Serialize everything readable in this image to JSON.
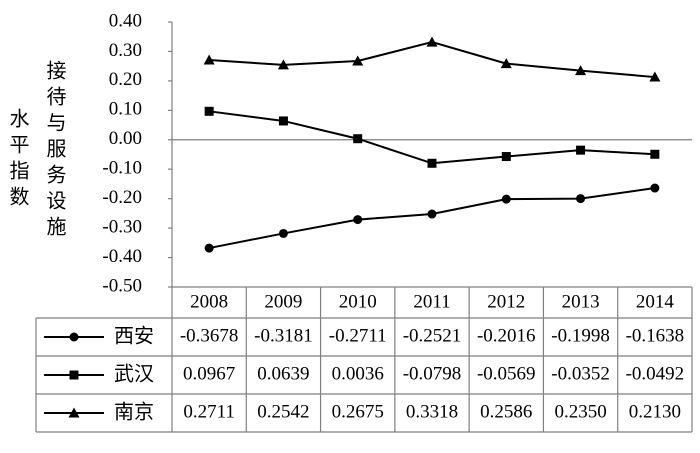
{
  "chart_data": {
    "type": "line",
    "ylabel": [
      "水平指数",
      "接待与服务设施"
    ],
    "categories": [
      "2008",
      "2009",
      "2010",
      "2011",
      "2012",
      "2013",
      "2014"
    ],
    "series": [
      {
        "name": "西安",
        "color": "#000000",
        "marker": "circle",
        "values": [
          -0.3678,
          -0.3181,
          -0.2711,
          -0.2521,
          -0.2016,
          -0.1998,
          -0.1638
        ],
        "value_labels": [
          "-0.3678",
          "-0.3181",
          "-0.2711",
          "-0.2521",
          "-0.2016",
          "-0.1998",
          "-0.1638"
        ]
      },
      {
        "name": "武汉",
        "color": "#000000",
        "marker": "square",
        "values": [
          0.0967,
          0.0639,
          0.0036,
          -0.0798,
          -0.0569,
          -0.0352,
          -0.0492
        ],
        "value_labels": [
          "0.0967",
          "0.0639",
          "0.0036",
          "-0.0798",
          "-0.0569",
          "-0.0352",
          "-0.0492"
        ]
      },
      {
        "name": "南京",
        "color": "#000000",
        "marker": "triangle",
        "values": [
          0.2711,
          0.2542,
          0.2675,
          0.3318,
          0.2586,
          0.235,
          0.213
        ],
        "value_labels": [
          "0.2711",
          "0.2542",
          "0.2675",
          "0.3318",
          "0.2586",
          "0.2350",
          "0.2130"
        ]
      }
    ],
    "ylim": [
      -0.5,
      0.4
    ],
    "yticks": [
      {
        "value": 0.4,
        "label": "0.40"
      },
      {
        "value": 0.3,
        "label": "0.30"
      },
      {
        "value": 0.2,
        "label": "0.20"
      },
      {
        "value": 0.1,
        "label": "0.10"
      },
      {
        "value": 0,
        "label": "0.00"
      },
      {
        "value": -0.1,
        "label": "-0.10"
      },
      {
        "value": -0.2,
        "label": "-0.20"
      },
      {
        "value": -0.3,
        "label": "-0.30"
      },
      {
        "value": -0.4,
        "label": "-0.40"
      },
      {
        "value": -0.5,
        "label": "-0.50"
      }
    ]
  }
}
